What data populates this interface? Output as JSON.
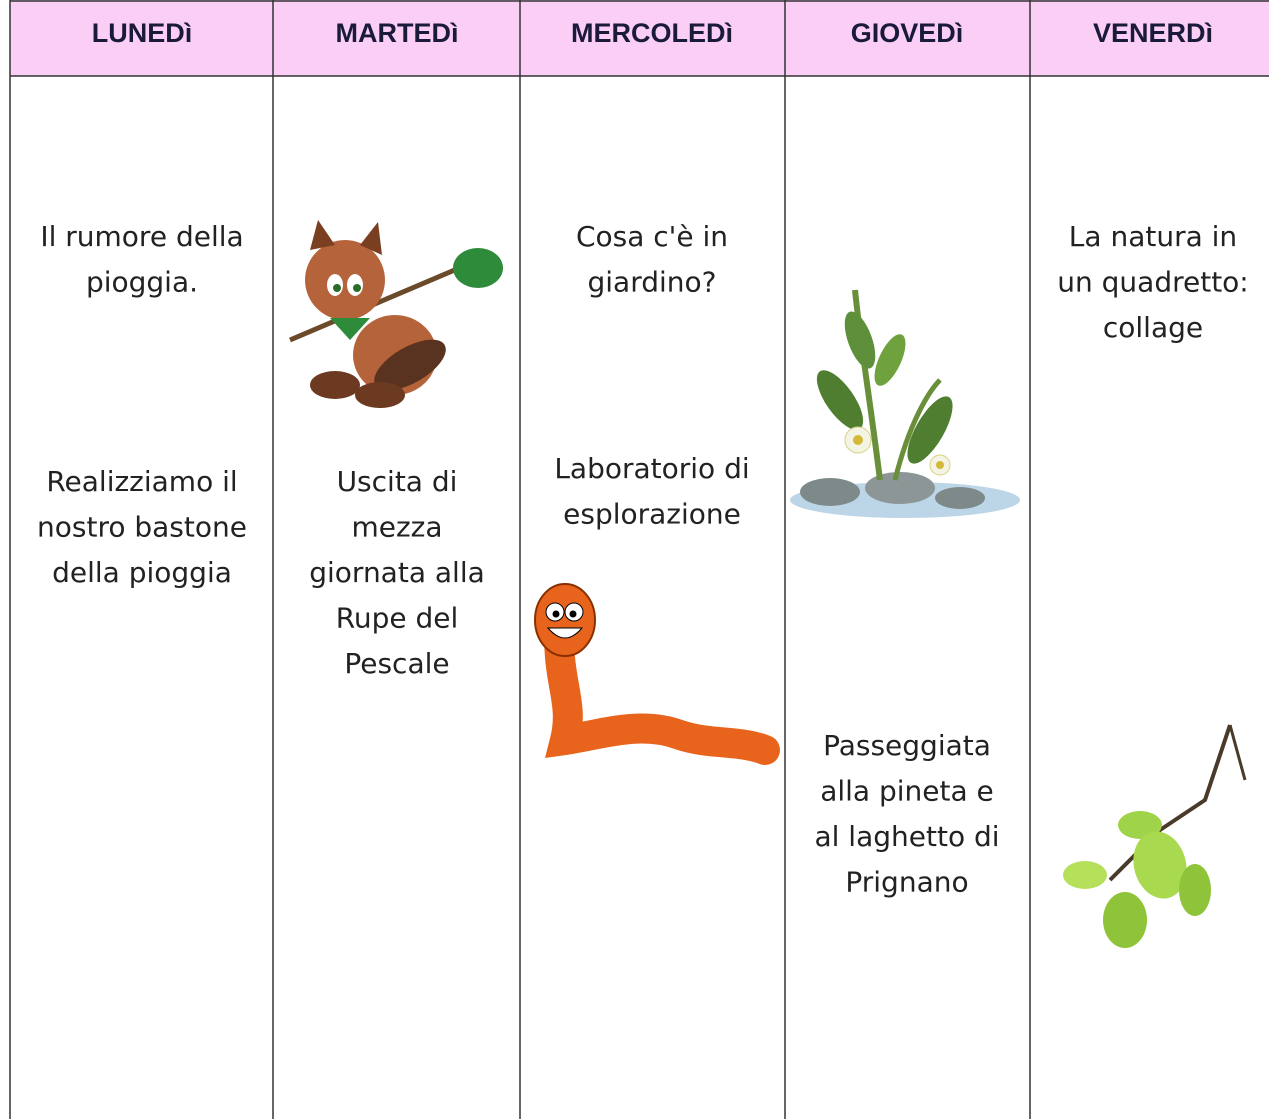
{
  "header": {
    "days": [
      "LUNEDì",
      "MARTEDì",
      "MERCOLEDì",
      "GIOVEDì",
      "VENERDì"
    ]
  },
  "cells": [
    [
      [
        "Il rumore  della",
        "pioggia."
      ],
      [
        "Realizziamo il",
        "nostro bastone",
        "della pioggia"
      ]
    ],
    [
      [
        "Uscita di",
        "mezza",
        "giornata alla",
        "Rupe del",
        "Pescale"
      ]
    ],
    [
      [
        "Cosa c'è in",
        "giardino?"
      ],
      [
        "Laboratorio di",
        "esplorazione"
      ]
    ],
    [
      [
        "Passeggiata",
        "alla pineta e",
        "al laghetto di",
        "Prignano"
      ]
    ],
    [
      [
        "La natura in",
        "un quadretto:",
        "collage"
      ]
    ]
  ]
}
